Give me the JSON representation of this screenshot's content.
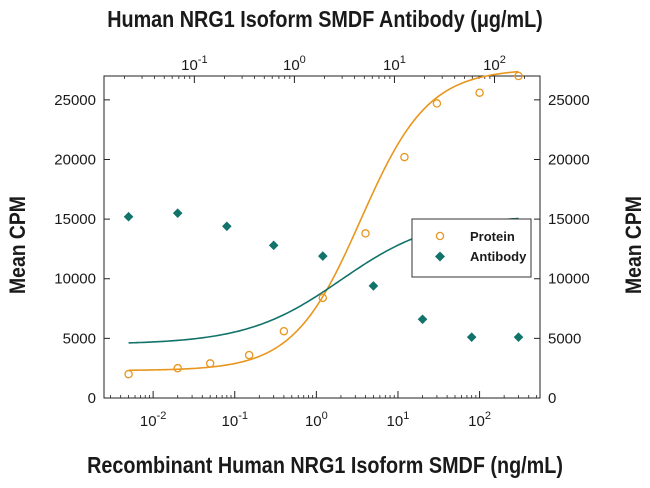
{
  "chart_data": {
    "type": "scatter",
    "title_top": "Human NRG1 Isoform SMDF Antibody (μg/mL)",
    "xlabel": "Recombinant Human NRG1 Isoform SMDF (ng/mL)",
    "ylabel_left": "Mean CPM",
    "ylabel_right": "Mean CPM",
    "x_scale": "log",
    "x_range": [
      0.0025,
      550
    ],
    "x_ticks": [
      {
        "value": 0.01,
        "base": "10",
        "exp": "-2"
      },
      {
        "value": 0.1,
        "base": "10",
        "exp": "-1"
      },
      {
        "value": 1,
        "base": "10",
        "exp": "0"
      },
      {
        "value": 10,
        "base": "10",
        "exp": "1"
      },
      {
        "value": 100,
        "base": "10",
        "exp": "2"
      }
    ],
    "x_top_scale": "log",
    "x_top_range": [
      0.0125,
      285
    ],
    "x_top_ticks": [
      {
        "value": 0.1,
        "base": "10",
        "exp": "-1"
      },
      {
        "value": 1,
        "base": "10",
        "exp": "0"
      },
      {
        "value": 10,
        "base": "10",
        "exp": "1"
      },
      {
        "value": 100,
        "base": "10",
        "exp": "2"
      }
    ],
    "ylim": [
      0,
      27000
    ],
    "y_ticks": [
      0,
      5000,
      10000,
      15000,
      20000,
      25000
    ],
    "grid": false,
    "legend_position": "right-middle",
    "series": [
      {
        "name": "Protein",
        "marker": "open-circle",
        "color": "#E8961E",
        "x": [
          0.005,
          0.02,
          0.05,
          0.15,
          0.4,
          1.2,
          4,
          12,
          30,
          100,
          300
        ],
        "y": [
          2000,
          2500,
          2900,
          3600,
          5600,
          8400,
          13800,
          20200,
          24700,
          25600,
          27000
        ],
        "fit": {
          "bottom": 2300,
          "top": 27600,
          "ec50": 3.5,
          "hill": 1.05
        }
      },
      {
        "name": "Antibody",
        "marker": "filled-diamond",
        "color": "#12736A",
        "x": [
          0.005,
          0.02,
          0.08,
          0.3,
          1.2,
          5,
          20,
          80,
          300
        ],
        "y": [
          15200,
          15500,
          14400,
          12800,
          11900,
          9400,
          6600,
          5100,
          5100
        ],
        "fit": {
          "bottom": 4500,
          "top": 15300,
          "ec50": 2.0,
          "hill": 0.75
        }
      }
    ]
  }
}
